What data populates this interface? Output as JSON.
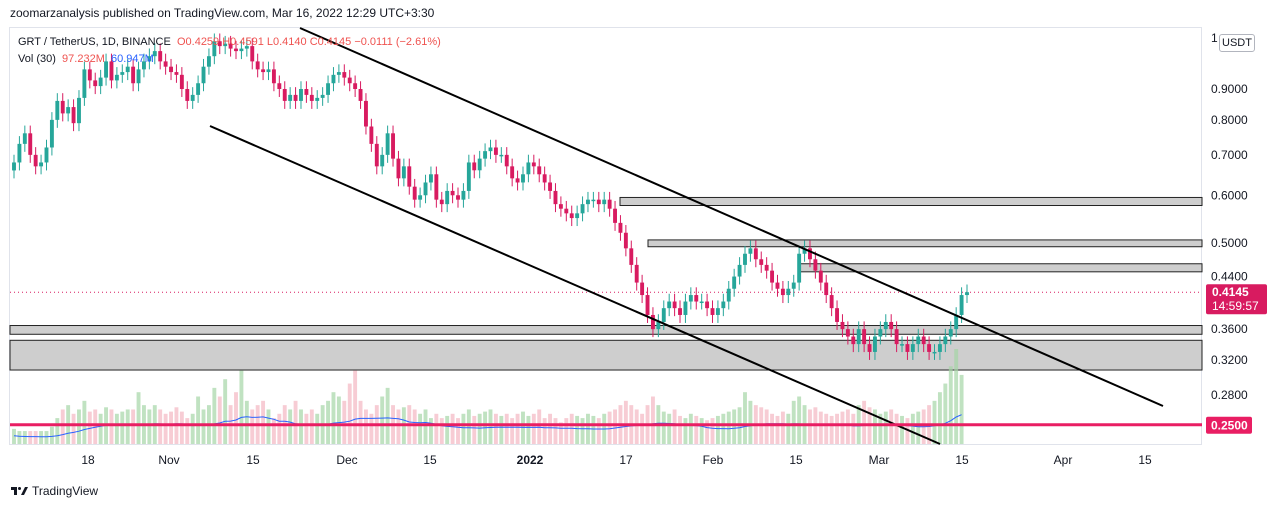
{
  "header": {
    "published": "zoomarzanalysis published on TradingView.com, Mar 16, 2022 12:29 UTC+3:30"
  },
  "legend": {
    "symbol": "GRT / TetherUS, 1D, BINANCE",
    "ohlc": "O0.4259 H0.4591 L0.4140 C0.4145 −0.0111 (−2.61%)",
    "vol_label": "Vol (30)",
    "vol_value": "97.232M",
    "vol_ma": "60.947M"
  },
  "currency_button": "USDT",
  "footer": {
    "brand": "TradingView"
  },
  "price_tags": {
    "last_price": "0.4145",
    "countdown": "14:59:57",
    "level": "0.2500"
  },
  "colors": {
    "up": "#26a69a",
    "down": "#d81b60",
    "level_line": "#e91e63"
  },
  "chart_data": {
    "type": "candlestick",
    "y_scale": "log",
    "ylim": [
      0.224,
      1.0
    ],
    "y_ticks": [
      "1",
      "0.9000",
      "0.8000",
      "0.7000",
      "0.6000",
      "0.5000",
      "0.4400",
      "0.3600",
      "0.3200",
      "0.2800"
    ],
    "x_ticks": [
      "18",
      "Nov",
      "15",
      "Dec",
      "15",
      "2022",
      "17",
      "Feb",
      "15",
      "Mar",
      "15",
      "Apr",
      "15"
    ],
    "closes": [
      0.68,
      0.73,
      0.76,
      0.7,
      0.67,
      0.68,
      0.72,
      0.8,
      0.86,
      0.82,
      0.84,
      0.79,
      0.87,
      0.97,
      0.93,
      0.91,
      0.94,
      1.0,
      0.93,
      0.95,
      0.96,
      0.98,
      0.92,
      0.97,
      1.0,
      1.02,
      1.04,
      1.0,
      0.98,
      0.96,
      0.95,
      0.9,
      0.86,
      0.88,
      0.92,
      0.98,
      1.02,
      1.08,
      1.06,
      1.07,
      1.05,
      1.04,
      1.05,
      1.06,
      1.0,
      0.97,
      0.96,
      0.97,
      0.92,
      0.9,
      0.86,
      0.88,
      0.86,
      0.9,
      0.88,
      0.86,
      0.87,
      0.88,
      0.92,
      0.95,
      0.96,
      0.94,
      0.92,
      0.9,
      0.86,
      0.78,
      0.73,
      0.67,
      0.7,
      0.76,
      0.69,
      0.64,
      0.67,
      0.62,
      0.59,
      0.6,
      0.63,
      0.65,
      0.59,
      0.58,
      0.61,
      0.6,
      0.59,
      0.61,
      0.68,
      0.66,
      0.69,
      0.71,
      0.72,
      0.7,
      0.7,
      0.67,
      0.64,
      0.63,
      0.65,
      0.68,
      0.67,
      0.65,
      0.63,
      0.61,
      0.58,
      0.57,
      0.56,
      0.55,
      0.56,
      0.58,
      0.59,
      0.59,
      0.58,
      0.59,
      0.57,
      0.54,
      0.52,
      0.49,
      0.46,
      0.43,
      0.41,
      0.38,
      0.36,
      0.37,
      0.39,
      0.4,
      0.39,
      0.38,
      0.4,
      0.41,
      0.4,
      0.4,
      0.39,
      0.38,
      0.39,
      0.4,
      0.42,
      0.44,
      0.46,
      0.48,
      0.49,
      0.47,
      0.46,
      0.45,
      0.43,
      0.42,
      0.41,
      0.42,
      0.43,
      0.48,
      0.49,
      0.47,
      0.45,
      0.43,
      0.41,
      0.39,
      0.37,
      0.36,
      0.35,
      0.34,
      0.36,
      0.34,
      0.33,
      0.35,
      0.36,
      0.37,
      0.36,
      0.34,
      0.34,
      0.33,
      0.34,
      0.35,
      0.34,
      0.33,
      0.33,
      0.34,
      0.35,
      0.36,
      0.38,
      0.41,
      0.4145
    ],
    "volumes": [
      0.35,
      0.3,
      0.3,
      0.3,
      0.3,
      0.3,
      0.3,
      0.4,
      0.6,
      0.8,
      0.9,
      0.7,
      0.8,
      1.0,
      0.75,
      0.8,
      0.7,
      0.85,
      0.8,
      0.7,
      0.75,
      0.8,
      0.8,
      1.2,
      0.9,
      0.8,
      0.9,
      0.8,
      0.7,
      0.75,
      0.85,
      0.75,
      0.6,
      0.7,
      1.1,
      0.8,
      0.9,
      1.3,
      1.1,
      1.5,
      0.9,
      1.2,
      1.7,
      1.0,
      0.8,
      0.9,
      1.0,
      0.8,
      0.6,
      0.7,
      0.9,
      0.8,
      1.0,
      0.8,
      0.7,
      0.8,
      0.7,
      0.9,
      1.0,
      1.2,
      1.1,
      1.0,
      1.4,
      1.7,
      1.0,
      0.8,
      0.7,
      0.9,
      1.1,
      1.3,
      0.9,
      0.8,
      0.85,
      0.9,
      0.8,
      0.7,
      0.8,
      0.6,
      0.7,
      0.6,
      0.65,
      0.7,
      0.6,
      0.7,
      0.8,
      0.65,
      0.7,
      0.75,
      0.8,
      0.7,
      0.65,
      0.7,
      0.6,
      0.7,
      0.75,
      0.65,
      0.7,
      0.8,
      0.6,
      0.7,
      0.6,
      0.5,
      0.6,
      0.7,
      0.65,
      0.6,
      0.7,
      0.65,
      0.6,
      0.7,
      0.75,
      0.8,
      0.9,
      1.0,
      0.9,
      0.8,
      0.7,
      0.9,
      1.1,
      0.9,
      0.75,
      0.7,
      0.8,
      0.65,
      0.6,
      0.7,
      0.65,
      0.6,
      0.55,
      0.6,
      0.65,
      0.7,
      0.75,
      0.8,
      0.85,
      1.2,
      1.0,
      0.9,
      0.85,
      0.8,
      0.7,
      0.65,
      0.75,
      0.7,
      1.0,
      1.1,
      0.9,
      0.8,
      0.85,
      0.75,
      0.7,
      0.65,
      0.7,
      0.75,
      0.8,
      0.7,
      0.9,
      1.0,
      0.85,
      0.8,
      0.7,
      0.75,
      0.8,
      0.7,
      0.65,
      0.6,
      0.7,
      0.75,
      0.8,
      0.9,
      1.0,
      1.2,
      1.4,
      1.8,
      2.2,
      1.6
    ],
    "zones": [
      [
        0.577,
        0.595
      ],
      [
        0.493,
        0.506
      ],
      [
        0.448,
        0.462
      ],
      [
        0.353,
        0.365
      ],
      [
        0.308,
        0.345
      ]
    ],
    "support_level": 0.25,
    "last_price": 0.4145
  }
}
